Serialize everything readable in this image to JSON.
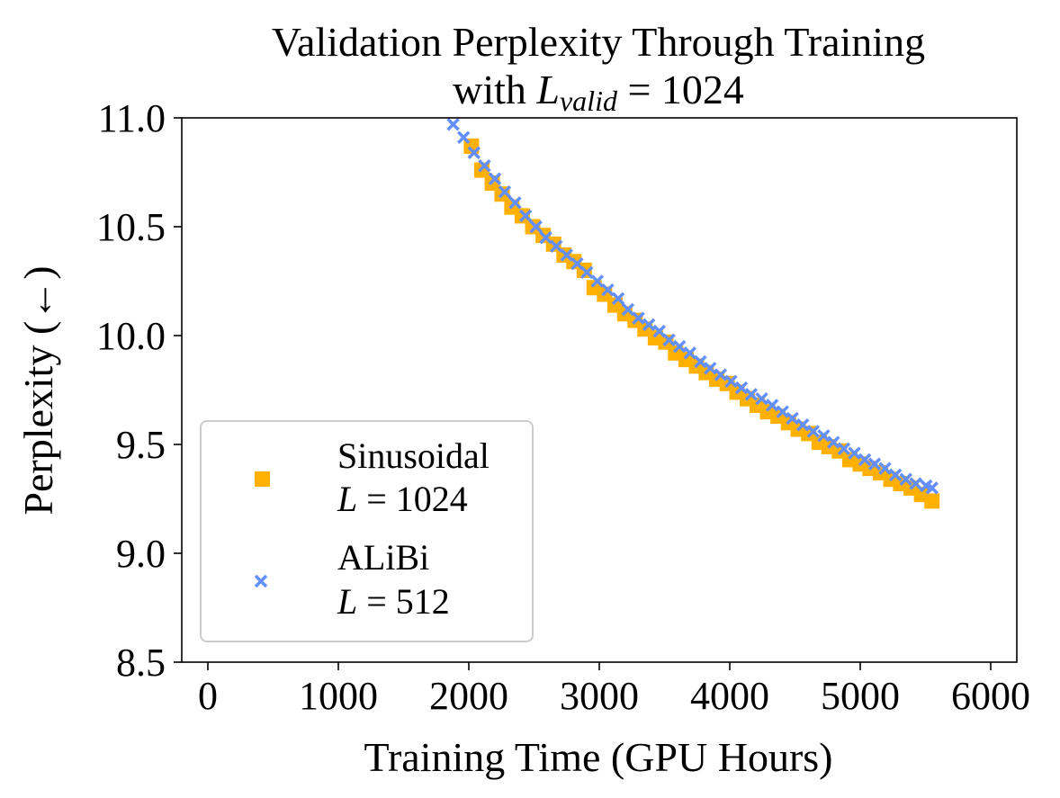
{
  "chart_data": {
    "type": "scatter",
    "title": "Validation Perplexity Through Training",
    "subtitle_prefix": "with ",
    "subtitle_var": "L",
    "subtitle_sub": "valid",
    "subtitle_suffix": " = 1024",
    "xlabel": "Training Time (GPU Hours)",
    "ylabel": "Perplexity (←)",
    "xlim": [
      -200,
      6200
    ],
    "ylim": [
      8.5,
      11.0
    ],
    "xticks": [
      0,
      1000,
      2000,
      3000,
      4000,
      5000,
      6000
    ],
    "xtick_labels": [
      "0",
      "1000",
      "2000",
      "3000",
      "4000",
      "5000",
      "6000"
    ],
    "yticks": [
      8.5,
      9.0,
      9.5,
      10.0,
      10.5,
      11.0
    ],
    "ytick_labels": [
      "8.5",
      "9.0",
      "9.5",
      "10.0",
      "10.5",
      "11.0"
    ],
    "grid": false,
    "legend_position": "lower-left",
    "series": [
      {
        "name": "Sinusoidal",
        "name_var": "L",
        "name_value": " = 1024",
        "marker": "square",
        "color": "#FFB000",
        "x": [
          2020,
          2100,
          2180,
          2255,
          2330,
          2410,
          2490,
          2570,
          2650,
          2730,
          2805,
          2885,
          2960,
          3040,
          3120,
          3195,
          3275,
          3350,
          3430,
          3510,
          3585,
          3665,
          3745,
          3820,
          3900,
          3980,
          4055,
          4135,
          4210,
          4290,
          4370,
          4450,
          4525,
          4605,
          4685,
          4760,
          4840,
          4920,
          5000,
          5075,
          5155,
          5235,
          5310,
          5390,
          5470,
          5550
        ],
        "y": [
          10.87,
          10.76,
          10.7,
          10.65,
          10.59,
          10.55,
          10.5,
          10.46,
          10.42,
          10.37,
          10.34,
          10.3,
          10.22,
          10.19,
          10.14,
          10.1,
          10.07,
          10.03,
          9.99,
          9.97,
          9.92,
          9.89,
          9.86,
          9.83,
          9.8,
          9.78,
          9.74,
          9.71,
          9.68,
          9.65,
          9.63,
          9.6,
          9.57,
          9.55,
          9.51,
          9.49,
          9.47,
          9.43,
          9.41,
          9.39,
          9.37,
          9.34,
          9.32,
          9.3,
          9.27,
          9.24
        ]
      },
      {
        "name": "ALiBi",
        "name_var": "L",
        "name_value": " = 512",
        "marker": "x",
        "color": "#648FFF",
        "x": [
          1880,
          1960,
          2040,
          2120,
          2200,
          2275,
          2355,
          2435,
          2515,
          2590,
          2670,
          2750,
          2830,
          2905,
          2985,
          3065,
          3145,
          3220,
          3300,
          3380,
          3460,
          3535,
          3615,
          3695,
          3775,
          3850,
          3930,
          4010,
          4090,
          4165,
          4245,
          4325,
          4405,
          4480,
          4560,
          4640,
          4720,
          4795,
          4875,
          4955,
          5035,
          5110,
          5190,
          5270,
          5350,
          5425,
          5505,
          5550
        ],
        "y": [
          10.97,
          10.91,
          10.84,
          10.78,
          10.72,
          10.66,
          10.61,
          10.55,
          10.5,
          10.45,
          10.41,
          10.37,
          10.33,
          10.29,
          10.25,
          10.21,
          10.17,
          10.12,
          10.08,
          10.05,
          10.02,
          9.98,
          9.95,
          9.92,
          9.88,
          9.85,
          9.82,
          9.79,
          9.76,
          9.73,
          9.71,
          9.68,
          9.65,
          9.62,
          9.59,
          9.56,
          9.54,
          9.51,
          9.48,
          9.46,
          9.43,
          9.41,
          9.39,
          9.36,
          9.34,
          9.32,
          9.31,
          9.3
        ]
      }
    ]
  }
}
